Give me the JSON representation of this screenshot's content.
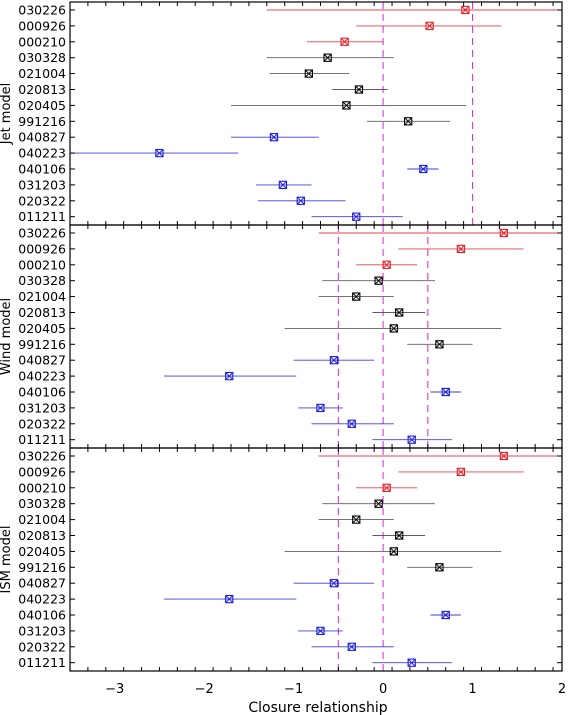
{
  "chart_data": {
    "type": "scatter",
    "xlabel": "Closure relationship",
    "xlim": [
      -3.5,
      2.0
    ],
    "xticks": [
      "−3",
      "−2",
      "−1",
      "0",
      "1",
      "2"
    ],
    "xtick_values": [
      -3,
      -2,
      -1,
      0,
      1,
      2
    ],
    "grid": false,
    "legend": "none",
    "categories": [
      "030226",
      "000926",
      "000210",
      "030328",
      "021004",
      "020813",
      "020405",
      "991216",
      "040827",
      "040223",
      "040106",
      "031203",
      "020322",
      "011211"
    ],
    "colors": {
      "red": "#e8202a",
      "black": "#000000",
      "blue": "#1c1ce0",
      "reference": "#d838d8"
    },
    "point_colors": [
      "red",
      "red",
      "red",
      "black",
      "black",
      "black",
      "black",
      "black",
      "blue",
      "blue",
      "blue",
      "blue",
      "blue",
      "blue"
    ],
    "panels": [
      {
        "ylabel": "Jet model",
        "reference_lines": [
          0,
          1
        ],
        "points": [
          {
            "x": 0.92,
            "xmin": -1.3,
            "xmax": 2.0
          },
          {
            "x": 0.52,
            "xmin": -0.3,
            "xmax": 1.32
          },
          {
            "x": -0.43,
            "xmin": -0.85,
            "xmax": 0.0
          },
          {
            "x": -0.62,
            "xmin": -1.3,
            "xmax": 0.12
          },
          {
            "x": -0.83,
            "xmin": -1.27,
            "xmax": -0.38
          },
          {
            "x": -0.27,
            "xmin": -0.57,
            "xmax": 0.05
          },
          {
            "x": -0.41,
            "xmin": -1.7,
            "xmax": 0.93
          },
          {
            "x": 0.28,
            "xmin": -0.18,
            "xmax": 0.75
          },
          {
            "x": -1.22,
            "xmin": -1.7,
            "xmax": -0.72
          },
          {
            "x": -2.5,
            "xmin": -3.5,
            "xmax": -1.62
          },
          {
            "x": 0.45,
            "xmin": 0.27,
            "xmax": 0.62
          },
          {
            "x": -1.12,
            "xmin": -1.42,
            "xmax": -0.8
          },
          {
            "x": -0.92,
            "xmin": -1.4,
            "xmax": -0.42
          },
          {
            "x": -0.3,
            "xmin": -0.8,
            "xmax": 0.22
          }
        ]
      },
      {
        "ylabel": "Wind model",
        "reference_lines": [
          -0.5,
          0.0,
          0.5
        ],
        "points": [
          {
            "x": 1.35,
            "xmin": -0.72,
            "xmax": 2.0
          },
          {
            "x": 0.87,
            "xmin": 0.17,
            "xmax": 1.57
          },
          {
            "x": 0.04,
            "xmin": -0.3,
            "xmax": 0.38
          },
          {
            "x": -0.05,
            "xmin": -0.68,
            "xmax": 0.58
          },
          {
            "x": -0.3,
            "xmin": -0.72,
            "xmax": 0.12
          },
          {
            "x": 0.18,
            "xmin": -0.12,
            "xmax": 0.47
          },
          {
            "x": 0.12,
            "xmin": -1.1,
            "xmax": 1.32
          },
          {
            "x": 0.63,
            "xmin": 0.27,
            "xmax": 1.0
          },
          {
            "x": -0.55,
            "xmin": -1.0,
            "xmax": -0.1
          },
          {
            "x": -1.72,
            "xmin": -2.45,
            "xmax": -0.97
          },
          {
            "x": 0.7,
            "xmin": 0.53,
            "xmax": 0.87
          },
          {
            "x": -0.7,
            "xmin": -0.95,
            "xmax": -0.45
          },
          {
            "x": -0.35,
            "xmin": -0.8,
            "xmax": 0.12
          },
          {
            "x": 0.32,
            "xmin": -0.12,
            "xmax": 0.77
          }
        ]
      },
      {
        "ylabel": "ISM model",
        "reference_lines": [
          -0.5,
          0.0
        ],
        "points": [
          {
            "x": 1.35,
            "xmin": -0.72,
            "xmax": 2.0
          },
          {
            "x": 0.87,
            "xmin": 0.17,
            "xmax": 1.57
          },
          {
            "x": 0.04,
            "xmin": -0.3,
            "xmax": 0.38
          },
          {
            "x": -0.05,
            "xmin": -0.68,
            "xmax": 0.58
          },
          {
            "x": -0.3,
            "xmin": -0.72,
            "xmax": 0.12
          },
          {
            "x": 0.18,
            "xmin": -0.12,
            "xmax": 0.47
          },
          {
            "x": 0.12,
            "xmin": -1.1,
            "xmax": 1.32
          },
          {
            "x": 0.63,
            "xmin": 0.27,
            "xmax": 1.0
          },
          {
            "x": -0.55,
            "xmin": -1.0,
            "xmax": -0.1
          },
          {
            "x": -1.72,
            "xmin": -2.45,
            "xmax": -0.97
          },
          {
            "x": 0.7,
            "xmin": 0.53,
            "xmax": 0.87
          },
          {
            "x": -0.7,
            "xmin": -0.95,
            "xmax": -0.45
          },
          {
            "x": -0.35,
            "xmin": -0.8,
            "xmax": 0.12
          },
          {
            "x": 0.32,
            "xmin": -0.12,
            "xmax": 0.77
          }
        ]
      }
    ]
  }
}
